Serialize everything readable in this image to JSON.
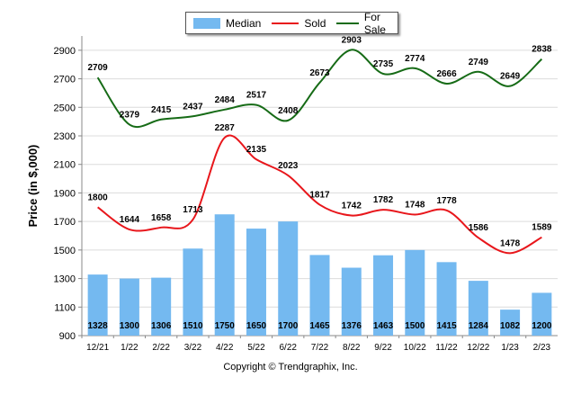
{
  "chart_data": {
    "type": "bar",
    "ylabel": "Price (in $,000)",
    "categories": [
      "12/21",
      "1/22",
      "2/22",
      "3/22",
      "4/22",
      "5/22",
      "6/22",
      "7/22",
      "8/22",
      "9/22",
      "10/22",
      "11/22",
      "12/22",
      "1/23",
      "2/23"
    ],
    "ylim": [
      900,
      3000
    ],
    "yticks": [
      900,
      1100,
      1300,
      1500,
      1700,
      1900,
      2100,
      2300,
      2500,
      2700,
      2900
    ],
    "grid": true,
    "legend_position": "top",
    "series": [
      {
        "name": "Median",
        "kind": "bar",
        "color": "#74B9F0",
        "values": [
          1328,
          1300,
          1306,
          1510,
          1750,
          1650,
          1700,
          1465,
          1376,
          1463,
          1500,
          1415,
          1284,
          1082,
          1200
        ]
      },
      {
        "name": "Sold",
        "kind": "line",
        "color": "#E8161B",
        "values": [
          1800,
          1644,
          1658,
          1713,
          2287,
          2135,
          2023,
          1817,
          1742,
          1782,
          1748,
          1778,
          1586,
          1478,
          1589
        ]
      },
      {
        "name": "For Sale",
        "kind": "line",
        "color": "#166B16",
        "values": [
          2709,
          2379,
          2415,
          2437,
          2484,
          2517,
          2408,
          2673,
          2903,
          2735,
          2774,
          2666,
          2749,
          2649,
          2838
        ]
      }
    ]
  },
  "footer": {
    "copyright": "Copyright © Trendgraphix, Inc."
  }
}
